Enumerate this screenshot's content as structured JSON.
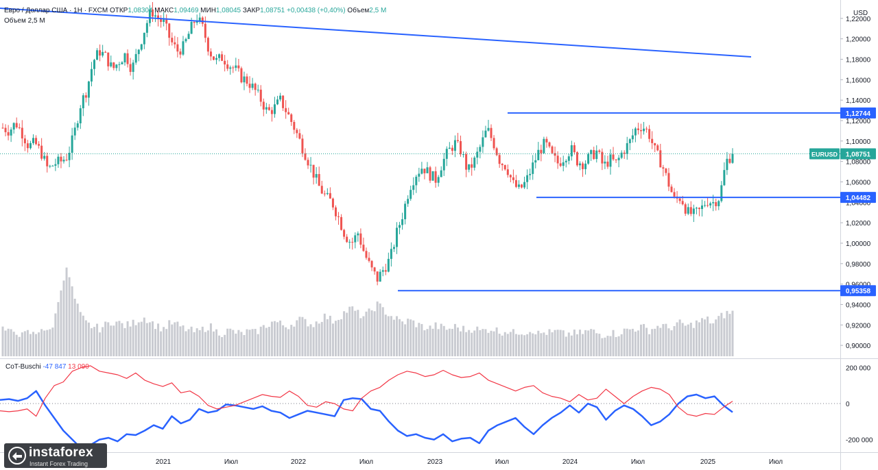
{
  "header": {
    "line1_a": "Евро / Доллар США · 1Н · FXCM",
    "open_label": "ОТКР",
    "open": "1,08304",
    "high_label": "МАКС",
    "high": "1,09469",
    "low_label": "МИН",
    "low": "1,08045",
    "close_label": "ЗАКР",
    "close": "1,08751",
    "change": "+0,00438 (+0,40%)",
    "volume_label": "Объем",
    "volume": "2,5 M",
    "line2": "Объем 2,5 M"
  },
  "cot": {
    "label": "CoT-Buschi",
    "value_blue": "-47 847",
    "value_red": "13 090"
  },
  "logo": {
    "brand": "instaforex",
    "tagline": "Instant Forex Trading"
  },
  "chart_data": [
    {
      "type": "candlestick",
      "title": "Евро / Доллар США · 1Н · FXCM",
      "currency": "USD",
      "y_ticks": [
        "1,22000",
        "1,20000",
        "1,18000",
        "1,16000",
        "1,14000",
        "1,12000",
        "1,10000",
        "1,08000",
        "1,06000",
        "1,04000",
        "1,02000",
        "1,00000",
        "0,98000",
        "0,96000",
        "0,94000",
        "0,92000",
        "0,90000"
      ],
      "y_tick_values": [
        1.22,
        1.2,
        1.18,
        1.16,
        1.14,
        1.12,
        1.1,
        1.08,
        1.06,
        1.04,
        1.02,
        1.0,
        0.98,
        0.96,
        0.94,
        0.92,
        0.9
      ],
      "ylim": [
        0.888,
        1.238
      ],
      "x_ticks": [
        "2021",
        "Июл",
        "2022",
        "Июл",
        "2023",
        "Июл",
        "2024",
        "Июл",
        "2025",
        "Июл"
      ],
      "price_labels": [
        {
          "text": "1,12744",
          "value": 1.12744,
          "kind": "level"
        },
        {
          "text": "EURUSD",
          "value": 1.08751,
          "kind": "symbol"
        },
        {
          "text": "1,08751",
          "value": 1.08751,
          "kind": "last"
        },
        {
          "text": "1,04482",
          "value": 1.04482,
          "kind": "level"
        },
        {
          "text": "0,95358",
          "value": 0.95358,
          "kind": "level"
        }
      ],
      "series": [
        {
          "name": "EURUSD",
          "price_path": [
            1.113,
            1.11,
            1.118,
            1.108,
            1.095,
            1.098,
            1.088,
            1.072,
            1.078,
            1.08,
            1.085,
            1.105,
            1.135,
            1.15,
            1.178,
            1.188,
            1.182,
            1.17,
            1.178,
            1.185,
            1.17,
            1.19,
            1.21,
            1.228,
            1.22,
            1.215,
            1.198,
            1.188,
            1.192,
            1.208,
            1.222,
            1.21,
            1.188,
            1.178,
            1.182,
            1.175,
            1.17,
            1.162,
            1.158,
            1.15,
            1.14,
            1.128,
            1.132,
            1.14,
            1.128,
            1.115,
            1.1,
            1.085,
            1.07,
            1.055,
            1.045,
            1.04,
            1.025,
            1.008,
            1.0,
            1.01,
            0.99,
            0.975,
            0.965,
            0.975,
            0.985,
            1.01,
            1.03,
            1.055,
            1.068,
            1.075,
            1.068,
            1.062,
            1.078,
            1.09,
            1.098,
            1.09,
            1.07,
            1.08,
            1.095,
            1.112,
            1.098,
            1.08,
            1.075,
            1.058,
            1.052,
            1.06,
            1.075,
            1.09,
            1.098,
            1.085,
            1.078,
            1.085,
            1.092,
            1.08,
            1.078,
            1.085,
            1.09,
            1.075,
            1.082,
            1.078,
            1.09,
            1.098,
            1.112,
            1.115,
            1.108,
            1.09,
            1.078,
            1.06,
            1.042,
            1.045,
            1.03,
            1.028,
            1.032,
            1.042,
            1.04,
            1.045,
            1.08,
            1.0875
          ]
        }
      ],
      "volume": [
        3,
        2.5,
        2.8,
        2.2,
        2.6,
        2.3,
        3.2,
        2.4,
        3.8,
        7.5,
        9.5,
        6.5,
        4.5,
        3.5,
        3.2,
        3.0,
        3.4,
        3.8,
        3.6,
        3.3,
        3.5,
        3.9,
        4.2,
        3.7,
        3.2,
        3.0,
        3.6,
        3.4,
        3.0,
        2.8,
        2.6,
        2.9,
        3.3,
        2.7,
        2.5,
        2.8,
        2.6,
        2.4,
        2.7,
        2.5,
        3.0,
        3.4,
        3.8,
        3.5,
        3.2,
        3.6,
        4.0,
        3.7,
        3.4,
        3.9,
        4.4,
        3.8,
        4.2,
        4.8,
        5.2,
        4.6,
        4.3,
        4.9,
        5.6,
        5.0,
        4.4,
        4.0,
        3.6,
        3.9,
        3.5,
        3.2,
        3.0,
        3.3,
        3.1,
        2.9,
        3.2,
        3.0,
        2.8,
        3.1,
        2.7,
        2.9,
        3.0,
        2.6,
        2.8,
        2.5,
        2.7,
        2.6,
        2.9,
        2.4,
        2.6,
        2.5,
        2.7,
        2.3,
        2.5,
        2.4,
        2.6,
        2.8,
        2.5,
        2.3,
        2.6,
        2.4,
        2.7,
        2.9,
        3.0,
        3.2,
        2.8,
        3.1,
        3.4,
        3.0,
        3.3,
        3.6,
        3.2,
        3.5,
        3.8,
        4.0,
        3.6,
        4.2,
        4.6,
        4.8
      ]
    },
    {
      "type": "line",
      "title": "CoT-Buschi",
      "y_ticks": [
        "200 000",
        "0",
        "-200 000"
      ],
      "y_tick_values": [
        200000,
        0,
        -200000
      ],
      "ylim": [
        -270000,
        240000
      ],
      "series": [
        {
          "name": "blue",
          "values": [
            20000,
            25000,
            15000,
            30000,
            70000,
            -10000,
            -80000,
            -150000,
            -200000,
            -250000,
            -230000,
            -200000,
            -190000,
            -210000,
            -170000,
            -175000,
            -150000,
            -120000,
            -140000,
            -70000,
            -110000,
            -90000,
            -30000,
            -50000,
            -40000,
            -5000,
            -10000,
            -20000,
            -30000,
            -15000,
            -40000,
            -50000,
            -80000,
            -60000,
            -40000,
            -50000,
            -60000,
            -70000,
            20000,
            30000,
            25000,
            -30000,
            -40000,
            -100000,
            -150000,
            -180000,
            -170000,
            -190000,
            -200000,
            -170000,
            -210000,
            -195000,
            -190000,
            -220000,
            -150000,
            -120000,
            -100000,
            -80000,
            -130000,
            -170000,
            -120000,
            -80000,
            -50000,
            -10000,
            -50000,
            0,
            -20000,
            -90000,
            -40000,
            -10000,
            -30000,
            -70000,
            -120000,
            -100000,
            -60000,
            0,
            40000,
            50000,
            30000,
            40000,
            -10000,
            -47847
          ]
        },
        {
          "name": "red",
          "values": [
            -40000,
            -45000,
            -40000,
            -30000,
            -70000,
            30000,
            100000,
            120000,
            180000,
            200000,
            210000,
            180000,
            170000,
            160000,
            140000,
            170000,
            130000,
            110000,
            95000,
            115000,
            60000,
            70000,
            40000,
            -10000,
            -30000,
            -20000,
            -10000,
            10000,
            30000,
            50000,
            40000,
            35000,
            70000,
            40000,
            -10000,
            -20000,
            10000,
            0,
            -30000,
            -40000,
            30000,
            70000,
            90000,
            130000,
            160000,
            180000,
            170000,
            150000,
            160000,
            185000,
            160000,
            145000,
            150000,
            170000,
            130000,
            110000,
            90000,
            70000,
            90000,
            100000,
            60000,
            40000,
            30000,
            10000,
            50000,
            20000,
            30000,
            80000,
            40000,
            0,
            40000,
            70000,
            90000,
            80000,
            50000,
            -20000,
            -60000,
            -70000,
            -55000,
            -60000,
            -20000,
            13090
          ]
        }
      ]
    }
  ]
}
